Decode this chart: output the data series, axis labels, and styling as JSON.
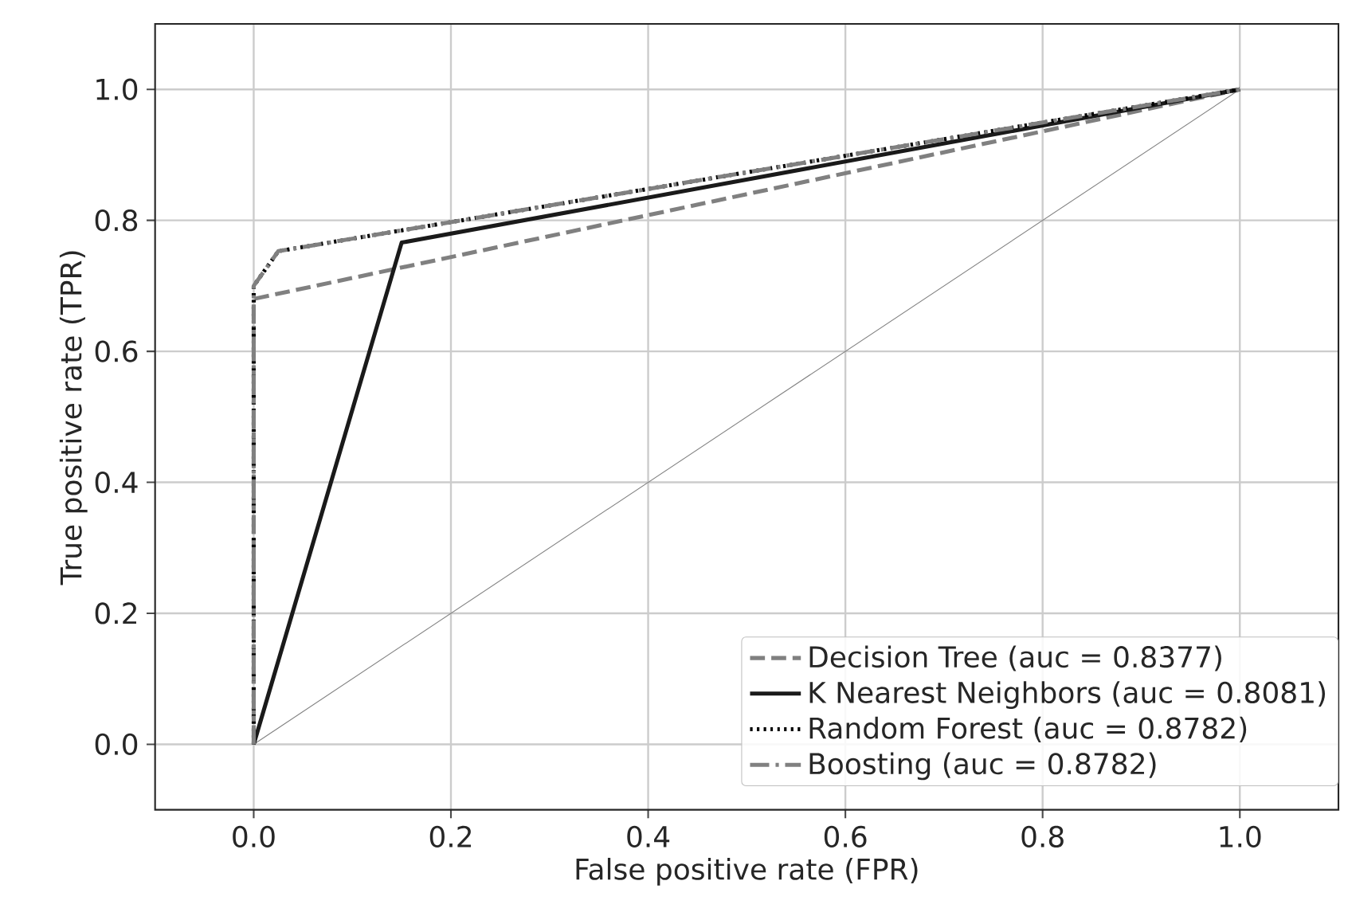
{
  "chart_data": {
    "type": "line",
    "xlabel": "False positive rate (FPR)",
    "ylabel": "True positive rate (TPR)",
    "xlim": [
      -0.1,
      1.1
    ],
    "ylim": [
      -0.1,
      1.1
    ],
    "xticks": [
      {
        "value": 0,
        "label": "0.0"
      },
      0.2,
      0.4,
      0.6,
      0.8,
      {
        "value": 1,
        "label": "1.0"
      }
    ],
    "yticks": [
      {
        "value": 0,
        "label": "0.0"
      },
      0.2,
      0.4,
      0.6,
      0.8,
      {
        "value": 1,
        "label": "1.0"
      }
    ],
    "grid": true,
    "legend": "bottom right",
    "marker": "none",
    "series": [
      {
        "name": "Decision Tree (auc = 0.8377)",
        "color": "#808080",
        "line_style": "dashed",
        "x": [
          0,
          0,
          1
        ],
        "values": [
          0,
          0.68,
          1
        ]
      },
      {
        "name": "K Nearest Neighbors (auc = 0.8081)",
        "color": "#1a1a1a",
        "line_style": "solid",
        "x": [
          0,
          0.15,
          1
        ],
        "values": [
          0,
          0.766,
          1
        ]
      },
      {
        "name": "Random Forest (auc = 0.8782)",
        "color": "#000000",
        "line_style": "dotted",
        "x": [
          0,
          0,
          0.025,
          1
        ],
        "values": [
          0,
          0.7,
          0.753,
          1
        ]
      },
      {
        "name": "Boosting (auc = 0.8782)",
        "color": "#808080",
        "line_style": "dashdot",
        "x": [
          0,
          0,
          0.025,
          1
        ],
        "values": [
          0,
          0.7,
          0.753,
          1
        ]
      },
      {
        "color": "#808080",
        "line_style": "solid",
        "x": [
          0,
          1
        ],
        "values": [
          0,
          1
        ]
      }
    ]
  }
}
